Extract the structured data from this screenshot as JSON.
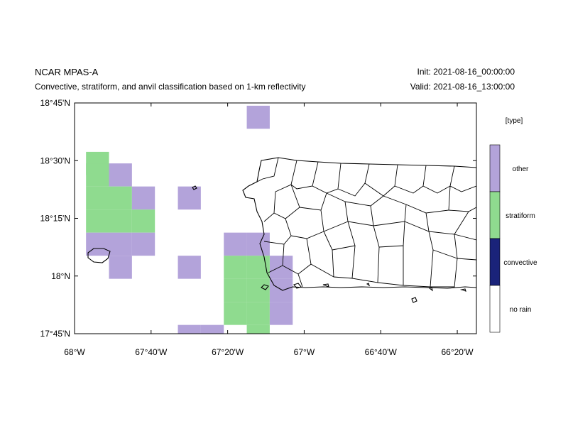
{
  "header": {
    "title": "NCAR MPAS-A",
    "subtitle": "Convective, stratiform, and anvil classification based on 1-km reflectivity",
    "init": "Init: 2021-08-16_00:00:00",
    "valid": "Valid: 2021-08-16_13:00:00"
  },
  "map": {
    "lat_range": [
      17.75,
      18.75
    ],
    "lon_range": [
      -68.0,
      -66.25
    ],
    "y_ticks": [
      {
        "value": 18.75,
        "label": "18°45'N"
      },
      {
        "value": 18.5,
        "label": "18°30'N"
      },
      {
        "value": 18.25,
        "label": "18°15'N"
      },
      {
        "value": 18.0,
        "label": "18°N"
      },
      {
        "value": 17.75,
        "label": "17°45'N"
      }
    ],
    "x_ticks": [
      {
        "value": -68.0,
        "label": "68°W"
      },
      {
        "value": -67.6667,
        "label": "67°40'W"
      },
      {
        "value": -67.3333,
        "label": "67°20'W"
      },
      {
        "value": -67.0,
        "label": "67°W"
      },
      {
        "value": -66.6667,
        "label": "66°40'W"
      },
      {
        "value": -66.3333,
        "label": "66°20'W"
      }
    ]
  },
  "legend": {
    "title": "[type]",
    "items": [
      {
        "label": "other",
        "color": "#b3a3da"
      },
      {
        "label": "stratiform",
        "color": "#8fdb8f"
      },
      {
        "label": "convective",
        "color": "#1a237a"
      },
      {
        "label": "no rain",
        "color": "#ffffff"
      }
    ]
  },
  "cells": [
    {
      "lat": 18.688,
      "lon": -67.2,
      "type": "other"
    },
    {
      "lat": 18.488,
      "lon": -67.9,
      "type": "stratiform"
    },
    {
      "lat": 18.438,
      "lon": -67.9,
      "type": "stratiform"
    },
    {
      "lat": 18.438,
      "lon": -67.8,
      "type": "other"
    },
    {
      "lat": 18.338,
      "lon": -67.9,
      "type": "stratiform"
    },
    {
      "lat": 18.338,
      "lon": -67.8,
      "type": "stratiform"
    },
    {
      "lat": 18.338,
      "lon": -67.7,
      "type": "other"
    },
    {
      "lat": 18.338,
      "lon": -67.5,
      "type": "other"
    },
    {
      "lat": 18.238,
      "lon": -67.9,
      "type": "stratiform"
    },
    {
      "lat": 18.238,
      "lon": -67.8,
      "type": "stratiform"
    },
    {
      "lat": 18.238,
      "lon": -67.7,
      "type": "stratiform"
    },
    {
      "lat": 18.138,
      "lon": -67.9,
      "type": "other"
    },
    {
      "lat": 18.138,
      "lon": -67.8,
      "type": "other"
    },
    {
      "lat": 18.138,
      "lon": -67.7,
      "type": "other"
    },
    {
      "lat": 18.138,
      "lon": -67.3,
      "type": "other"
    },
    {
      "lat": 18.138,
      "lon": -67.2,
      "type": "other"
    },
    {
      "lat": 18.038,
      "lon": -67.8,
      "type": "other"
    },
    {
      "lat": 18.038,
      "lon": -67.5,
      "type": "other"
    },
    {
      "lat": 18.038,
      "lon": -67.3,
      "type": "stratiform"
    },
    {
      "lat": 18.038,
      "lon": -67.1,
      "type": "other"
    },
    {
      "lat": 17.938,
      "lon": -67.3,
      "type": "stratiform"
    },
    {
      "lat": 17.938,
      "lon": -67.2,
      "type": "stratiform"
    },
    {
      "lat": 17.938,
      "lon": -67.1,
      "type": "other"
    },
    {
      "lat": 17.838,
      "lon": -67.3,
      "type": "stratiform"
    },
    {
      "lat": 17.838,
      "lon": -67.2,
      "type": "stratiform"
    },
    {
      "lat": 17.838,
      "lon": -67.1,
      "type": "other"
    },
    {
      "lat": 17.738,
      "lon": -67.5,
      "type": "other"
    },
    {
      "lat": 17.738,
      "lon": -67.4,
      "type": "other"
    },
    {
      "lat": 17.738,
      "lon": -67.2,
      "type": "stratiform"
    },
    {
      "lat": 18.038,
      "lon": -67.2,
      "type": "stratiform"
    }
  ]
}
